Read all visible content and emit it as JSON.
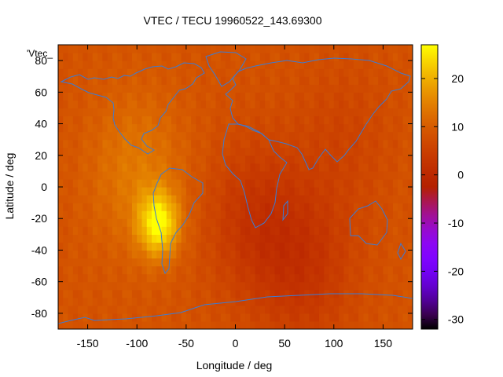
{
  "chart_data": {
    "type": "heatmap",
    "title": "VTEC / TECU 19960522_143.69300",
    "xlabel": "Longitude / deg",
    "ylabel": "Latitude / deg",
    "legend_key": "'Vtec_",
    "xlim": [
      -180,
      180
    ],
    "ylim": [
      -90,
      90
    ],
    "x_ticks": [
      -150,
      -100,
      -50,
      0,
      50,
      100,
      150
    ],
    "y_ticks": [
      -80,
      -60,
      -40,
      -20,
      0,
      20,
      40,
      60,
      80
    ],
    "colorbar": {
      "range": [
        -32,
        27
      ],
      "ticks": [
        20,
        10,
        0,
        -10,
        -20,
        -30
      ],
      "palette": "gnuplot-pm3d-rainbow-black-purple-red-yellow"
    },
    "field": {
      "grid_step_deg": 5,
      "background_value": 8.5,
      "features": [
        {
          "name": "south-atlantic-anomaly-peak",
          "lon": -78,
          "lat": -23,
          "value": 26
        },
        {
          "name": "american-sector-enhancement",
          "lon": -100,
          "lat": 10,
          "value": 14
        },
        {
          "name": "african-sector-depletion",
          "lon": 20,
          "lat": -20,
          "value": 3
        },
        {
          "name": "indian-ocean-depletion",
          "lon": 70,
          "lat": -50,
          "value": 3
        },
        {
          "name": "asian-sector-moderate",
          "lon": 110,
          "lat": 30,
          "value": 6
        }
      ]
    }
  }
}
